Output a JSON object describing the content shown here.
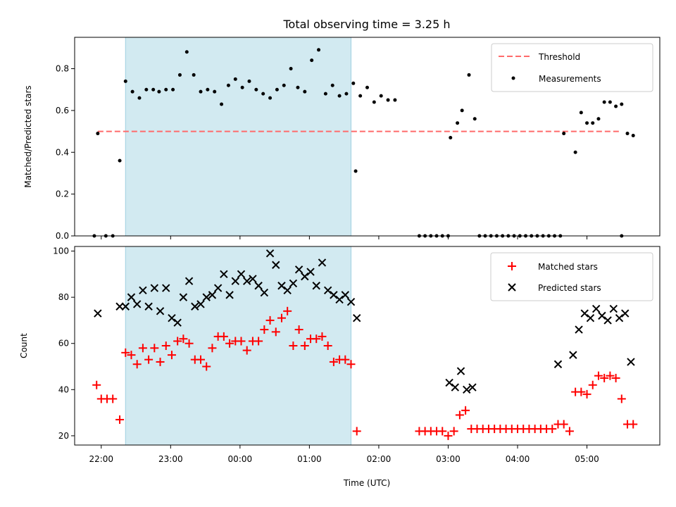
{
  "figure": {
    "title": "Total observing time = 3.25 h",
    "colors": {
      "threshold": "#ff6b6b",
      "highlight_fill": "#add8e6",
      "matched": "#ff0000",
      "predicted": "#000000",
      "measurement": "#000000"
    }
  },
  "chart_data": [
    {
      "type": "scatter",
      "title": "Total observing time = 3.25 h",
      "xlabel": "",
      "ylabel": "Matched/Predicted stars",
      "xlim": [
        "21:37",
        "06:03"
      ],
      "ylim": [
        0.0,
        0.95
      ],
      "yticks": [
        "0.0",
        "0.2",
        "0.4",
        "0.6",
        "0.8"
      ],
      "highlight_span": [
        "22:21",
        "01:36"
      ],
      "threshold": {
        "label": "Threshold",
        "value": 0.5,
        "x_range": [
          "21:57",
          "05:30"
        ],
        "style": "dashed"
      },
      "legend": {
        "position": "top-right",
        "entries": [
          "Threshold",
          "Measurements"
        ]
      },
      "series": [
        {
          "name": "Measurements",
          "points": [
            [
              "21:54",
              0.0
            ],
            [
              "21:57",
              0.49
            ],
            [
              "22:04",
              0.0
            ],
            [
              "22:10",
              0.0
            ],
            [
              "22:16",
              0.36
            ],
            [
              "22:21",
              0.74
            ],
            [
              "22:27",
              0.69
            ],
            [
              "22:33",
              0.66
            ],
            [
              "22:39",
              0.7
            ],
            [
              "22:45",
              0.7
            ],
            [
              "22:50",
              0.69
            ],
            [
              "22:56",
              0.7
            ],
            [
              "23:02",
              0.7
            ],
            [
              "23:08",
              0.77
            ],
            [
              "23:14",
              0.88
            ],
            [
              "23:20",
              0.77
            ],
            [
              "23:26",
              0.69
            ],
            [
              "23:32",
              0.7
            ],
            [
              "23:38",
              0.69
            ],
            [
              "23:44",
              0.63
            ],
            [
              "23:50",
              0.72
            ],
            [
              "23:56",
              0.75
            ],
            [
              "00:02",
              0.71
            ],
            [
              "00:08",
              0.74
            ],
            [
              "00:14",
              0.7
            ],
            [
              "00:20",
              0.68
            ],
            [
              "00:26",
              0.66
            ],
            [
              "00:32",
              0.7
            ],
            [
              "00:38",
              0.72
            ],
            [
              "00:44",
              0.8
            ],
            [
              "00:50",
              0.71
            ],
            [
              "00:56",
              0.69
            ],
            [
              "01:02",
              0.84
            ],
            [
              "01:08",
              0.89
            ],
            [
              "01:14",
              0.68
            ],
            [
              "01:20",
              0.72
            ],
            [
              "01:26",
              0.67
            ],
            [
              "01:32",
              0.68
            ],
            [
              "01:38",
              0.73
            ],
            [
              "01:44",
              0.67
            ],
            [
              "01:50",
              0.71
            ],
            [
              "01:56",
              0.64
            ],
            [
              "02:02",
              0.67
            ],
            [
              "02:08",
              0.65
            ],
            [
              "02:14",
              0.65
            ],
            [
              "01:40",
              0.31
            ],
            [
              "02:35",
              0.0
            ],
            [
              "02:40",
              0.0
            ],
            [
              "02:45",
              0.0
            ],
            [
              "02:50",
              0.0
            ],
            [
              "02:55",
              0.0
            ],
            [
              "03:00",
              0.0
            ],
            [
              "03:02",
              0.47
            ],
            [
              "03:08",
              0.54
            ],
            [
              "03:12",
              0.6
            ],
            [
              "03:18",
              0.77
            ],
            [
              "03:23",
              0.56
            ],
            [
              "03:27",
              0.0
            ],
            [
              "03:32",
              0.0
            ],
            [
              "03:37",
              0.0
            ],
            [
              "03:42",
              0.0
            ],
            [
              "03:47",
              0.0
            ],
            [
              "03:52",
              0.0
            ],
            [
              "03:57",
              0.0
            ],
            [
              "04:02",
              0.0
            ],
            [
              "04:07",
              0.0
            ],
            [
              "04:12",
              0.0
            ],
            [
              "04:17",
              0.0
            ],
            [
              "04:22",
              0.0
            ],
            [
              "04:27",
              0.0
            ],
            [
              "04:32",
              0.0
            ],
            [
              "04:37",
              0.0
            ],
            [
              "04:40",
              0.49
            ],
            [
              "04:50",
              0.4
            ],
            [
              "04:55",
              0.59
            ],
            [
              "05:00",
              0.54
            ],
            [
              "05:05",
              0.54
            ],
            [
              "05:10",
              0.56
            ],
            [
              "05:15",
              0.64
            ],
            [
              "05:20",
              0.64
            ],
            [
              "05:25",
              0.62
            ],
            [
              "05:30",
              0.63
            ],
            [
              "05:35",
              0.49
            ],
            [
              "05:40",
              0.48
            ],
            [
              "05:30",
              0.0
            ]
          ]
        }
      ]
    },
    {
      "type": "scatter",
      "title": "",
      "xlabel": "Time (UTC)",
      "ylabel": "Count",
      "xlim": [
        "21:37",
        "06:03"
      ],
      "ylim": [
        16,
        102
      ],
      "yticks": [
        "20",
        "40",
        "60",
        "80",
        "100"
      ],
      "xticks": [
        "22:00",
        "23:00",
        "00:00",
        "01:00",
        "02:00",
        "03:00",
        "04:00",
        "05:00"
      ],
      "highlight_span": [
        "22:21",
        "01:36"
      ],
      "legend": {
        "position": "top-right",
        "entries": [
          "Matched stars",
          "Predicted stars"
        ]
      },
      "series": [
        {
          "name": "Matched stars",
          "marker": "plus",
          "points": [
            [
              "21:56",
              42
            ],
            [
              "22:00",
              36
            ],
            [
              "22:05",
              36
            ],
            [
              "22:10",
              36
            ],
            [
              "22:16",
              27
            ],
            [
              "22:21",
              56
            ],
            [
              "22:26",
              55
            ],
            [
              "22:31",
              51
            ],
            [
              "22:36",
              58
            ],
            [
              "22:41",
              53
            ],
            [
              "22:46",
              58
            ],
            [
              "22:51",
              52
            ],
            [
              "22:56",
              59
            ],
            [
              "23:01",
              55
            ],
            [
              "23:06",
              61
            ],
            [
              "23:11",
              62
            ],
            [
              "23:16",
              60
            ],
            [
              "23:21",
              53
            ],
            [
              "23:26",
              53
            ],
            [
              "23:31",
              50
            ],
            [
              "23:36",
              58
            ],
            [
              "23:41",
              63
            ],
            [
              "23:46",
              63
            ],
            [
              "23:51",
              60
            ],
            [
              "23:56",
              61
            ],
            [
              "00:01",
              61
            ],
            [
              "00:06",
              57
            ],
            [
              "00:11",
              61
            ],
            [
              "00:16",
              61
            ],
            [
              "00:21",
              66
            ],
            [
              "00:26",
              70
            ],
            [
              "00:31",
              65
            ],
            [
              "00:36",
              71
            ],
            [
              "00:41",
              74
            ],
            [
              "00:46",
              59
            ],
            [
              "00:51",
              66
            ],
            [
              "00:56",
              59
            ],
            [
              "01:01",
              62
            ],
            [
              "01:06",
              62
            ],
            [
              "01:11",
              63
            ],
            [
              "01:16",
              59
            ],
            [
              "01:21",
              52
            ],
            [
              "01:26",
              53
            ],
            [
              "01:31",
              53
            ],
            [
              "01:36",
              51
            ],
            [
              "01:41",
              22
            ],
            [
              "02:35",
              22
            ],
            [
              "02:40",
              22
            ],
            [
              "02:45",
              22
            ],
            [
              "02:50",
              22
            ],
            [
              "02:55",
              22
            ],
            [
              "03:00",
              20
            ],
            [
              "03:05",
              22
            ],
            [
              "03:10",
              29
            ],
            [
              "03:15",
              31
            ],
            [
              "03:20",
              23
            ],
            [
              "03:25",
              23
            ],
            [
              "03:30",
              23
            ],
            [
              "03:35",
              23
            ],
            [
              "03:40",
              23
            ],
            [
              "03:45",
              23
            ],
            [
              "03:50",
              23
            ],
            [
              "03:55",
              23
            ],
            [
              "04:00",
              23
            ],
            [
              "04:05",
              23
            ],
            [
              "04:10",
              23
            ],
            [
              "04:15",
              23
            ],
            [
              "04:20",
              23
            ],
            [
              "04:25",
              23
            ],
            [
              "04:30",
              23
            ],
            [
              "04:35",
              25
            ],
            [
              "04:40",
              25
            ],
            [
              "04:45",
              22
            ],
            [
              "04:50",
              39
            ],
            [
              "04:55",
              39
            ],
            [
              "05:00",
              38
            ],
            [
              "05:05",
              42
            ],
            [
              "05:10",
              46
            ],
            [
              "05:15",
              45
            ],
            [
              "05:20",
              46
            ],
            [
              "05:25",
              45
            ],
            [
              "05:30",
              36
            ],
            [
              "05:35",
              25
            ],
            [
              "05:40",
              25
            ]
          ]
        },
        {
          "name": "Predicted stars",
          "marker": "x",
          "points": [
            [
              "21:57",
              73
            ],
            [
              "22:16",
              76
            ],
            [
              "22:21",
              76
            ],
            [
              "22:26",
              80
            ],
            [
              "22:31",
              77
            ],
            [
              "22:36",
              83
            ],
            [
              "22:41",
              76
            ],
            [
              "22:46",
              84
            ],
            [
              "22:51",
              74
            ],
            [
              "22:56",
              84
            ],
            [
              "23:01",
              71
            ],
            [
              "23:06",
              69
            ],
            [
              "23:11",
              80
            ],
            [
              "23:16",
              87
            ],
            [
              "23:21",
              76
            ],
            [
              "23:26",
              77
            ],
            [
              "23:31",
              80
            ],
            [
              "23:36",
              81
            ],
            [
              "23:41",
              84
            ],
            [
              "23:46",
              90
            ],
            [
              "23:51",
              81
            ],
            [
              "23:56",
              87
            ],
            [
              "00:01",
              90
            ],
            [
              "00:06",
              87
            ],
            [
              "00:11",
              88
            ],
            [
              "00:16",
              85
            ],
            [
              "00:21",
              82
            ],
            [
              "00:26",
              99
            ],
            [
              "00:31",
              94
            ],
            [
              "00:36",
              85
            ],
            [
              "00:41",
              83
            ],
            [
              "00:46",
              86
            ],
            [
              "00:51",
              92
            ],
            [
              "00:56",
              89
            ],
            [
              "01:01",
              91
            ],
            [
              "01:06",
              85
            ],
            [
              "01:11",
              95
            ],
            [
              "01:16",
              83
            ],
            [
              "01:21",
              81
            ],
            [
              "01:26",
              79
            ],
            [
              "01:31",
              81
            ],
            [
              "01:36",
              78
            ],
            [
              "01:41",
              71
            ],
            [
              "03:01",
              43
            ],
            [
              "03:06",
              41
            ],
            [
              "03:11",
              48
            ],
            [
              "03:16",
              40
            ],
            [
              "03:21",
              41
            ],
            [
              "04:35",
              51
            ],
            [
              "04:48",
              55
            ],
            [
              "04:53",
              66
            ],
            [
              "04:58",
              73
            ],
            [
              "05:03",
              71
            ],
            [
              "05:08",
              75
            ],
            [
              "05:13",
              72
            ],
            [
              "05:18",
              70
            ],
            [
              "05:23",
              75
            ],
            [
              "05:28",
              71
            ],
            [
              "05:33",
              73
            ],
            [
              "05:38",
              52
            ]
          ]
        }
      ]
    }
  ]
}
